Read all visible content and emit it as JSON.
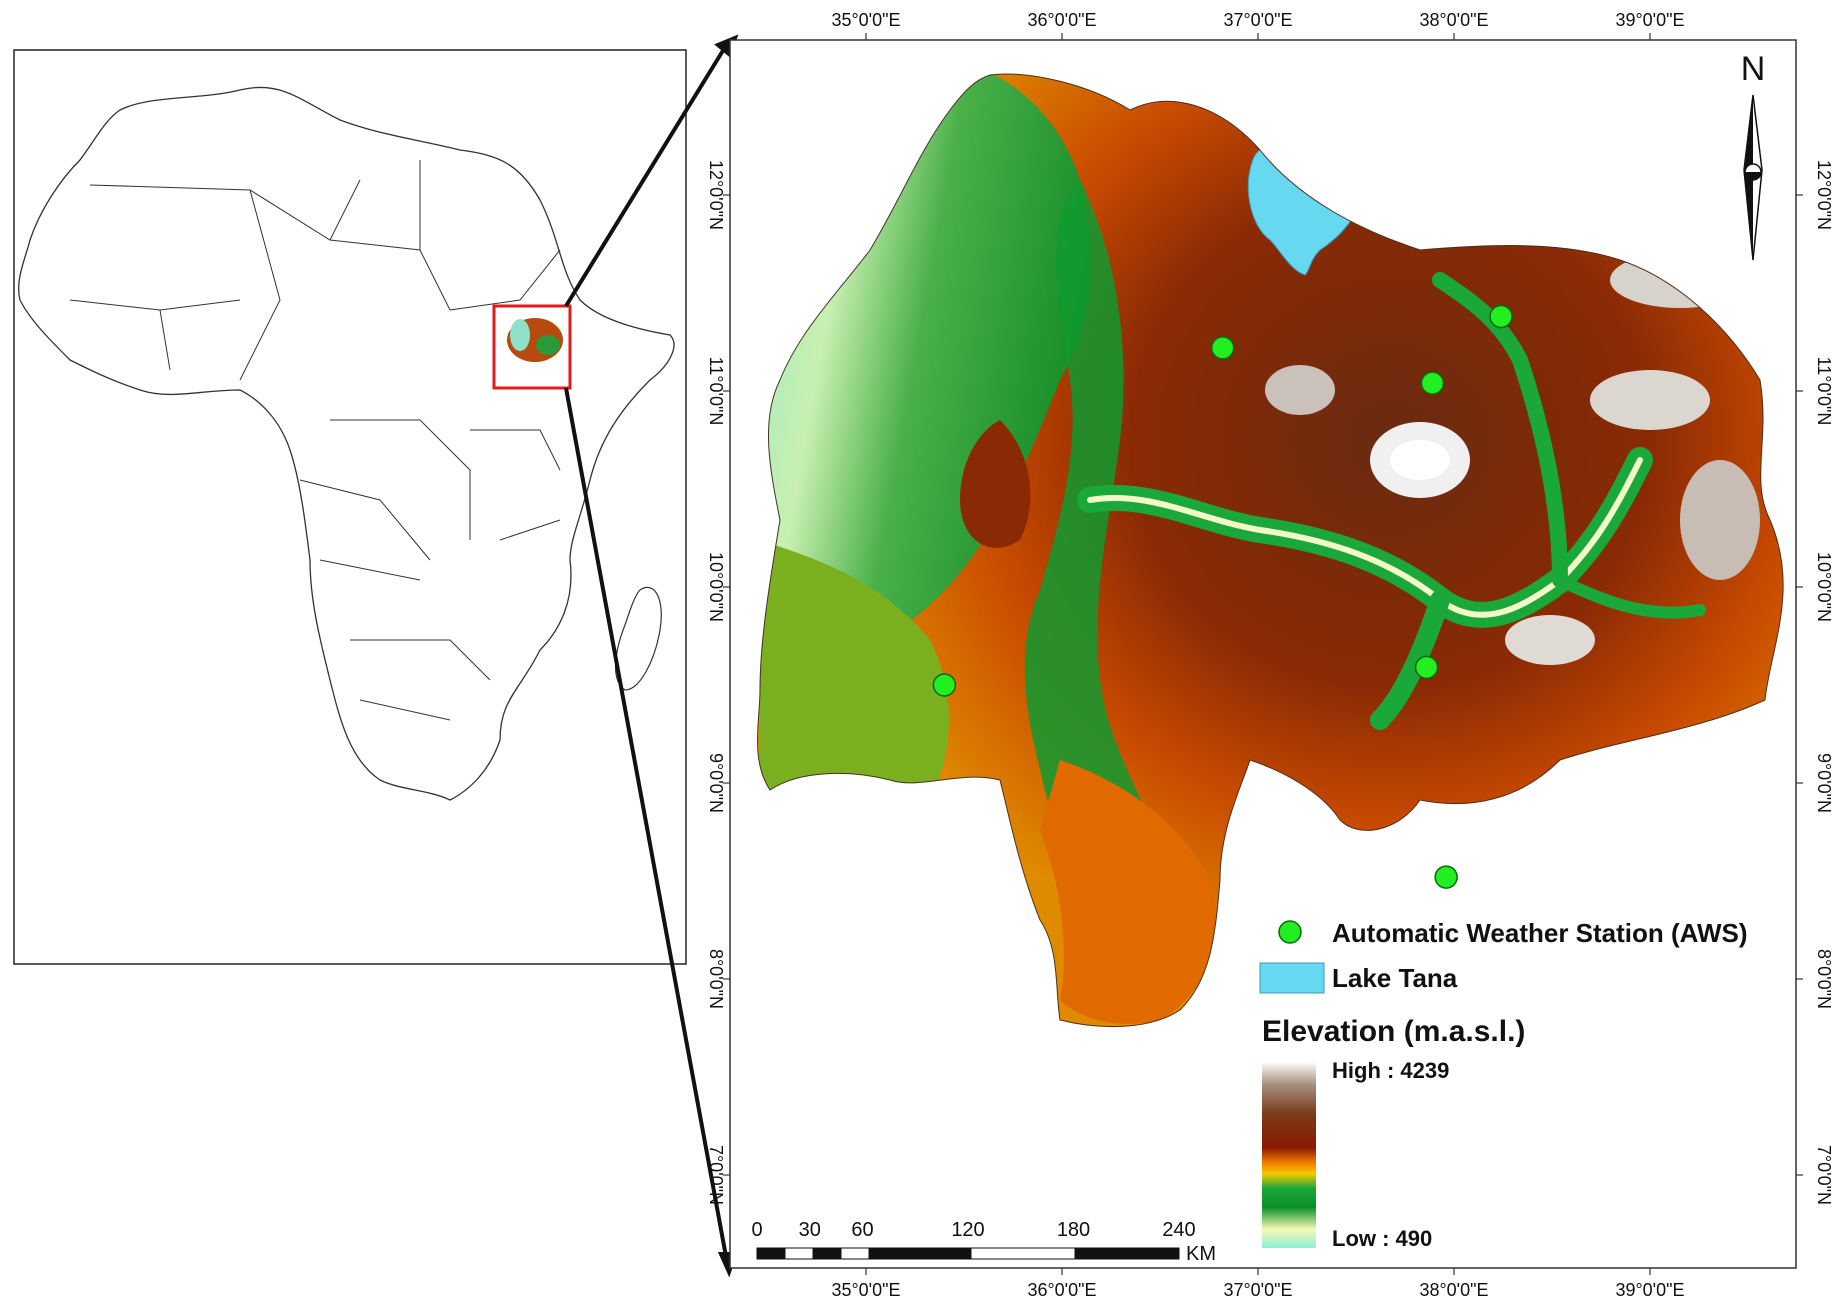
{
  "inset_map": {
    "subject": "Africa",
    "highlight": "Ethiopia / Upper Blue Nile study area"
  },
  "main_map": {
    "lon_ticks": [
      "35°0'0\"E",
      "36°0'0\"E",
      "37°0'0\"E",
      "38°0'0\"E",
      "39°0'0\"E"
    ],
    "lat_ticks_left": [
      "12°0'0\"N",
      "11°0'0\"N",
      "10°0'0\"N",
      "9°0'0\"N",
      "8°0'0\"N",
      "7°0'0\"N"
    ],
    "lat_ticks_right": [
      "12°0'0\"N",
      "11°0'0\"N",
      "10°0'0\"N",
      "9°0'0\"N",
      "8°0'0\"N",
      "7°0'0\"N"
    ],
    "north_label": "N",
    "stations": [
      {
        "lon": 36.82,
        "lat": 11.22
      },
      {
        "lon": 37.89,
        "lat": 11.04
      },
      {
        "lon": 38.24,
        "lat": 11.38
      },
      {
        "lon": 35.4,
        "lat": 9.5
      },
      {
        "lon": 37.86,
        "lat": 9.59
      },
      {
        "lon": 37.96,
        "lat": 8.52
      }
    ]
  },
  "legend": {
    "aws_label": "Automatic Weather Station (AWS)",
    "lake_label": "Lake Tana",
    "elevation_title": "Elevation (m.a.s.l.)",
    "high_label": "High : 4239",
    "low_label": "Low : 490"
  },
  "scale_bar": {
    "labels": [
      "0",
      "30",
      "60",
      "120",
      "180",
      "240"
    ],
    "unit": "KM"
  },
  "colors": {
    "station": "#22ee22",
    "lake": "#66d9f0",
    "inset_box": "#e21a1a",
    "elevation_ramp": [
      "#8ef0d8",
      "#f8f8b8",
      "#0a8f2a",
      "#f5c800",
      "#f07a00",
      "#8a1a00",
      "#7a3a1a",
      "#a89080",
      "#ffffff"
    ]
  }
}
